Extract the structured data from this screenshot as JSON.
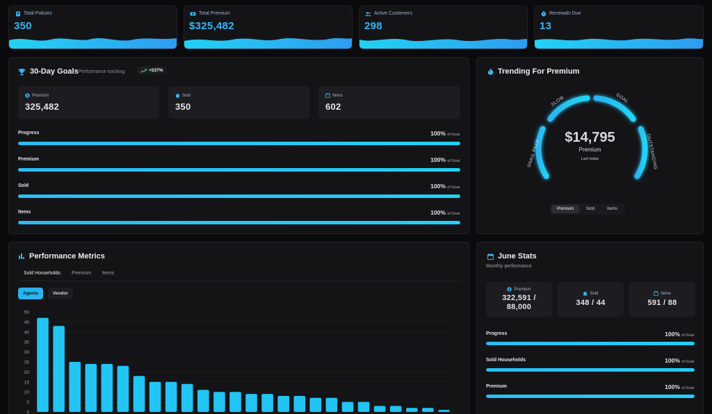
{
  "kpis": [
    {
      "label": "Total Policies",
      "value": "350",
      "icon": "policy-icon"
    },
    {
      "label": "Total Premium",
      "value": "$325,482",
      "icon": "money-icon"
    },
    {
      "label": "Active Customers",
      "value": "298",
      "icon": "users-icon"
    },
    {
      "label": "Renewals Due",
      "value": "13",
      "icon": "clock-icon"
    }
  ],
  "goals": {
    "title": "30-Day Goals",
    "subtitle": "Performance tracking",
    "badge": "+537%",
    "stats": [
      {
        "label": "Premium",
        "value": "325,482",
        "icon": "dollar-icon"
      },
      {
        "label": "Sold",
        "value": "350",
        "icon": "home-icon"
      },
      {
        "label": "Items",
        "value": "602",
        "icon": "clipboard-icon"
      }
    ],
    "progress": [
      {
        "label": "Progress",
        "pct": "100%",
        "suffix": "of Goal",
        "fill": 1.0
      },
      {
        "label": "Premium",
        "pct": "100%",
        "suffix": "of Goal",
        "fill": 1.0
      },
      {
        "label": "Sold",
        "pct": "100%",
        "suffix": "of Goal",
        "fill": 1.0
      },
      {
        "label": "Items",
        "pct": "100%",
        "suffix": "of Goal",
        "fill": 1.0
      }
    ]
  },
  "trending": {
    "title": "Trending For Premium",
    "value": "$14,795",
    "metric": "Premium",
    "caption": "Last today",
    "gauge_labels": [
      "SNAIL PACE",
      "SLOW",
      "GOAL",
      "OUTSTANDING"
    ],
    "segments": [
      "Premium",
      "Sold",
      "Items"
    ],
    "active_segment": "Premium"
  },
  "metrics": {
    "title": "Performance Metrics",
    "tabs": [
      "Sold Households",
      "Premium",
      "Items"
    ],
    "active_tab": "Sold Households",
    "filters": [
      "Agents",
      "Vendor"
    ],
    "active_filter": "Agents"
  },
  "june": {
    "title": "June Stats",
    "subtitle": "Monthly performance",
    "stats": [
      {
        "label": "Premium",
        "value_line1": "322,591 /",
        "value_line2": "88,000",
        "icon": "dollar-icon"
      },
      {
        "label": "Sold",
        "value_line1": "348 / 44",
        "value_line2": "",
        "icon": "home-icon"
      },
      {
        "label": "Items",
        "value_line1": "591 / 88",
        "value_line2": "",
        "icon": "clipboard-icon"
      }
    ],
    "progress": [
      {
        "label": "Progress",
        "pct": "100%",
        "suffix": "of Goal",
        "fill": 1.0
      },
      {
        "label": "Sold Households",
        "pct": "100%",
        "suffix": "of Goal",
        "fill": 1.0
      },
      {
        "label": "Premium",
        "pct": "100%",
        "suffix": "of Goal",
        "fill": 1.0
      }
    ]
  },
  "chart_data": {
    "type": "bar",
    "ylim": [
      0,
      50
    ],
    "yticks": [
      "0",
      "5",
      "10",
      "15",
      "20",
      "25",
      "30",
      "35",
      "40",
      "45",
      "50"
    ],
    "values": [
      47,
      43,
      25,
      24,
      24,
      23,
      18,
      15,
      15,
      14,
      11,
      10,
      10,
      9,
      9,
      8,
      8,
      7,
      7,
      5,
      5,
      3,
      3,
      2,
      2,
      1
    ],
    "color": "#22c4f3",
    "grid": true
  },
  "colors": {
    "accent": "#36b6f5",
    "badge": "#4ade80"
  }
}
